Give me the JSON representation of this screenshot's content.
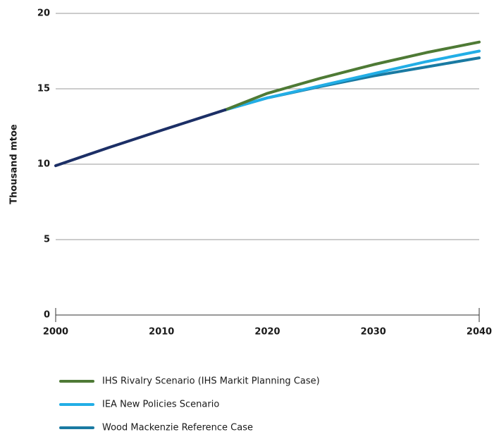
{
  "chart_data": {
    "type": "line",
    "y_label": "Thousand mtoe",
    "x": [
      2000,
      2005,
      2010,
      2016,
      2020,
      2025,
      2030,
      2035,
      2040
    ],
    "series": [
      {
        "color": "#1c2f66",
        "values": [
          9.9,
          11.1,
          12.25,
          13.6,
          null,
          null,
          null,
          null,
          null
        ]
      },
      {
        "name": "IHS Rivalry Scenario (IHS Markit Planning Case)",
        "color": "#4e7a35",
        "values": [
          null,
          null,
          null,
          13.6,
          14.7,
          15.7,
          16.6,
          17.4,
          18.1
        ]
      },
      {
        "name": "IEA New Policies Scenario",
        "color": "#22aee6",
        "values": [
          null,
          null,
          null,
          13.6,
          14.4,
          15.2,
          16.0,
          16.8,
          17.5
        ]
      },
      {
        "name": "Wood Mackenzie Reference Case",
        "color": "#1a7aa2",
        "values": [
          null,
          null,
          null,
          13.6,
          14.4,
          15.15,
          15.85,
          16.45,
          17.05
        ]
      }
    ],
    "xlim": [
      2000,
      2040
    ],
    "xticks": [
      2000,
      2010,
      2020,
      2030,
      2040
    ],
    "ylim": [
      0,
      20
    ],
    "yticks": [
      0,
      5,
      10,
      15,
      20
    ],
    "grid": true
  }
}
